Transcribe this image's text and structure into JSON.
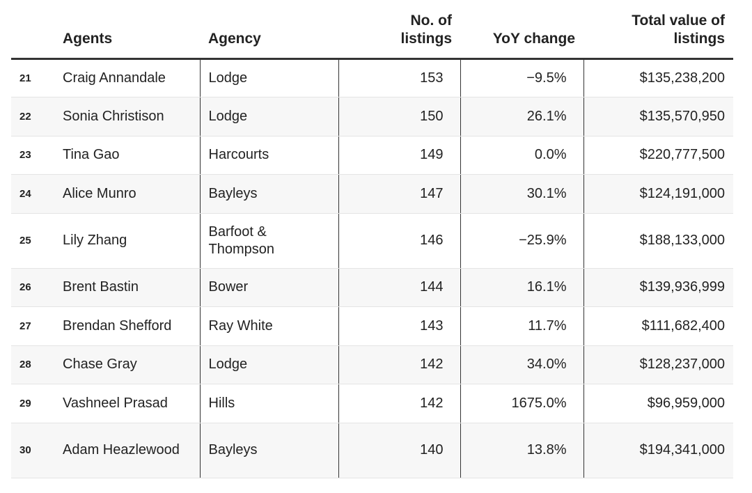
{
  "chart_data": {
    "type": "table",
    "columns": [
      "",
      "Agents",
      "Agency",
      "No. of listings",
      "YoY change",
      "Total value of listings"
    ],
    "header": {
      "rank": "",
      "agents": "Agents",
      "agency": "Agency",
      "listings_line1": "No. of",
      "listings_line2": "listings",
      "yoy": "YoY change",
      "total_line1": "Total value of",
      "total_line2": "listings"
    },
    "rows": [
      {
        "rank": "21",
        "agent": "Craig Annandale",
        "agency": "Lodge",
        "listings": "153",
        "yoy": "−9.5%",
        "total": "$135,238,200"
      },
      {
        "rank": "22",
        "agent": "Sonia Christison",
        "agency": "Lodge",
        "listings": "150",
        "yoy": "26.1%",
        "total": "$135,570,950"
      },
      {
        "rank": "23",
        "agent": "Tina Gao",
        "agency": "Harcourts",
        "listings": "149",
        "yoy": "0.0%",
        "total": "$220,777,500"
      },
      {
        "rank": "24",
        "agent": "Alice Munro",
        "agency": "Bayleys",
        "listings": "147",
        "yoy": "30.1%",
        "total": "$124,191,000"
      },
      {
        "rank": "25",
        "agent": "Lily Zhang",
        "agency": "Barfoot & Thompson",
        "listings": "146",
        "yoy": "−25.9%",
        "total": "$188,133,000"
      },
      {
        "rank": "26",
        "agent": "Brent Bastin",
        "agency": "Bower",
        "listings": "144",
        "yoy": "16.1%",
        "total": "$139,936,999"
      },
      {
        "rank": "27",
        "agent": "Brendan Shefford",
        "agency": "Ray White",
        "listings": "143",
        "yoy": "11.7%",
        "total": "$111,682,400"
      },
      {
        "rank": "28",
        "agent": "Chase Gray",
        "agency": "Lodge",
        "listings": "142",
        "yoy": "34.0%",
        "total": "$128,237,000"
      },
      {
        "rank": "29",
        "agent": "Vashneel Prasad",
        "agency": "Hills",
        "listings": "142",
        "yoy": "1675.0%",
        "total": "$96,959,000"
      },
      {
        "rank": "30",
        "agent": "Adam Heazlewood",
        "agency": "Bayleys",
        "listings": "140",
        "yoy": "13.8%",
        "total": "$194,341,000"
      }
    ]
  }
}
